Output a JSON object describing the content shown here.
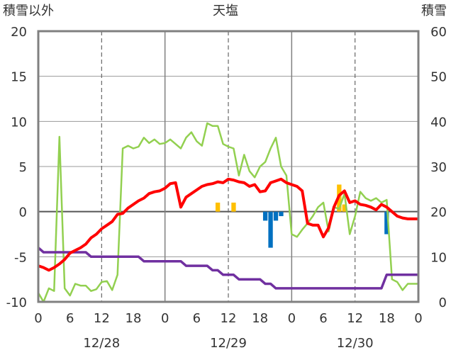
{
  "chart_data": {
    "type": "line",
    "title": "天塩",
    "left_axis_label": "積雪以外",
    "right_axis_label": "積雪",
    "left_ylim": [
      -10,
      20
    ],
    "right_ylim": [
      0,
      60
    ],
    "left_yticks": [
      20,
      15,
      10,
      5,
      0,
      -5,
      -10
    ],
    "right_yticks": [
      60,
      50,
      40,
      30,
      20,
      10,
      0
    ],
    "x_range_hours": [
      0,
      72
    ],
    "x_tick_labels": [
      "0",
      "6",
      "12",
      "18",
      "0",
      "6",
      "12",
      "18",
      "0",
      "6",
      "12",
      "18",
      "0"
    ],
    "date_labels": [
      {
        "label": "12/28",
        "hour": 12
      },
      {
        "label": "12/29",
        "hour": 36
      },
      {
        "label": "12/30",
        "hour": 60
      }
    ],
    "grid": true,
    "colors": {
      "temperature": "#ff0000",
      "wind": "#92d050",
      "snow_depth": "#7030a0",
      "sunshine": "#ffc000",
      "precipitation": "#0070c0",
      "frame": "#808080"
    },
    "series": [
      {
        "key": "temperature",
        "axis": "left",
        "x": [
          0,
          1,
          2,
          3,
          4,
          5,
          6,
          7,
          8,
          9,
          10,
          11,
          12,
          13,
          14,
          15,
          16,
          17,
          18,
          19,
          20,
          21,
          22,
          23,
          24,
          25,
          26,
          27,
          28,
          29,
          30,
          31,
          32,
          33,
          34,
          35,
          36,
          37,
          38,
          39,
          40,
          41,
          42,
          43,
          44,
          45,
          46,
          47,
          48,
          49,
          50,
          51,
          52,
          53,
          54,
          55,
          56,
          57,
          58,
          59,
          60,
          61,
          62,
          63,
          64,
          65,
          66,
          67,
          68,
          69,
          70,
          71,
          72
        ],
        "values": [
          -6.0,
          -6.2,
          -6.5,
          -6.2,
          -5.8,
          -5.3,
          -4.6,
          -4.3,
          -4.0,
          -3.6,
          -2.9,
          -2.5,
          -1.9,
          -1.5,
          -1.1,
          -0.3,
          -0.2,
          0.4,
          0.8,
          1.2,
          1.5,
          2.0,
          2.2,
          2.3,
          2.6,
          3.1,
          3.2,
          0.5,
          1.6,
          2.0,
          2.4,
          2.8,
          3.0,
          3.1,
          3.3,
          3.2,
          3.6,
          3.5,
          3.3,
          3.2,
          2.8,
          3.0,
          2.2,
          2.3,
          3.2,
          3.4,
          3.6,
          3.2,
          3.0,
          2.8,
          2.3,
          -1.3,
          -1.5,
          -1.5,
          -2.8,
          -1.8,
          0.5,
          1.8,
          2.3,
          1.0,
          1.2,
          0.8,
          0.7,
          0.5,
          0.2,
          0.8,
          0.5,
          0.0,
          -0.5,
          -0.7,
          -0.8,
          -0.8,
          -0.8
        ]
      },
      {
        "key": "wind",
        "axis": "left",
        "x": [
          0,
          1,
          2,
          3,
          4,
          5,
          6,
          7,
          8,
          9,
          10,
          11,
          12,
          13,
          14,
          15,
          16,
          17,
          18,
          19,
          20,
          21,
          22,
          23,
          24,
          25,
          26,
          27,
          28,
          29,
          30,
          31,
          32,
          33,
          34,
          35,
          36,
          37,
          38,
          39,
          40,
          41,
          42,
          43,
          44,
          45,
          46,
          47,
          48,
          49,
          50,
          51,
          52,
          53,
          54,
          55,
          56,
          57,
          58,
          59,
          60,
          61,
          62,
          63,
          64,
          65,
          66,
          67,
          68,
          69,
          70,
          71,
          72
        ],
        "values": [
          -9.0,
          -10.0,
          -8.5,
          -8.8,
          8.3,
          -8.5,
          -9.3,
          -8.0,
          -8.2,
          -8.2,
          -8.8,
          -8.6,
          -7.8,
          -7.7,
          -8.7,
          -7.0,
          7.0,
          7.3,
          7.0,
          7.2,
          8.2,
          7.6,
          8.0,
          7.5,
          7.6,
          8.0,
          7.5,
          7.0,
          8.2,
          8.8,
          7.8,
          7.3,
          9.8,
          9.5,
          9.5,
          7.5,
          7.2,
          7.0,
          4.0,
          6.3,
          4.5,
          3.8,
          5.0,
          5.5,
          7.0,
          8.2,
          5.0,
          4.0,
          -2.5,
          -2.8,
          -2.0,
          -1.3,
          -0.5,
          0.5,
          1.0,
          -2.2,
          0.5,
          0.3,
          2.0,
          -2.5,
          -0.5,
          2.2,
          1.5,
          1.2,
          1.5,
          1.0,
          1.3,
          -7.5,
          -7.8,
          -8.7,
          -8.0,
          -8.0,
          -8.0
        ]
      },
      {
        "key": "snow_depth",
        "axis": "right",
        "x": [
          0,
          1,
          2,
          3,
          4,
          5,
          6,
          7,
          8,
          9,
          10,
          11,
          12,
          13,
          14,
          15,
          16,
          17,
          18,
          19,
          20,
          21,
          22,
          23,
          24,
          25,
          26,
          27,
          28,
          29,
          30,
          31,
          32,
          33,
          34,
          35,
          36,
          37,
          38,
          39,
          40,
          41,
          42,
          43,
          44,
          45,
          46,
          47,
          48,
          49,
          50,
          51,
          52,
          53,
          54,
          55,
          56,
          57,
          58,
          59,
          60,
          61,
          62,
          63,
          64,
          65,
          66,
          67,
          68,
          69,
          70,
          71,
          72
        ],
        "values": [
          12,
          11,
          11,
          11,
          11,
          11,
          11,
          11,
          11,
          11,
          10,
          10,
          10,
          10,
          10,
          10,
          10,
          10,
          10,
          10,
          9,
          9,
          9,
          9,
          9,
          9,
          9,
          9,
          8,
          8,
          8,
          8,
          8,
          7,
          7,
          6,
          6,
          6,
          5,
          5,
          5,
          5,
          5,
          4,
          4,
          3,
          3,
          3,
          3,
          3,
          3,
          3,
          3,
          3,
          3,
          3,
          3,
          3,
          3,
          3,
          3,
          3,
          3,
          3,
          3,
          3,
          6,
          6,
          6,
          6,
          6,
          6,
          6
        ]
      }
    ],
    "bars": [
      {
        "key": "sunshine",
        "axis": "left",
        "x": [
          34,
          37,
          57,
          58
        ],
        "values": [
          1.0,
          1.0,
          3.0,
          0.8
        ]
      },
      {
        "key": "precipitation",
        "axis": "left",
        "x": [
          43,
          44,
          45,
          46,
          66
        ],
        "values": [
          -1.0,
          -4.0,
          -1.0,
          -0.5,
          -2.5
        ]
      }
    ]
  }
}
